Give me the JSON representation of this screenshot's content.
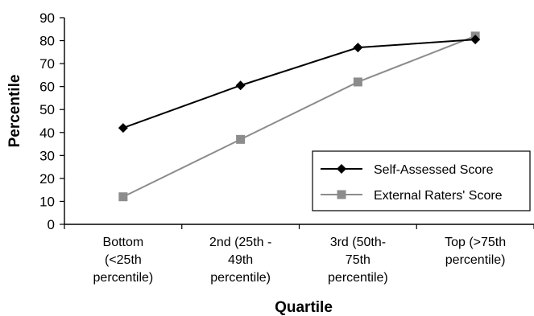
{
  "chart_data": {
    "type": "line",
    "xlabel": "Quartile",
    "ylabel": "Percentile",
    "ylim": [
      0,
      90
    ],
    "yticks": [
      0,
      10,
      20,
      30,
      40,
      50,
      60,
      70,
      80,
      90
    ],
    "grid": false,
    "legend_position": "bottom-right",
    "categories": [
      [
        "Bottom",
        "(<25th",
        "percentile)"
      ],
      [
        "2nd (25th -",
        "49th",
        "percentile)"
      ],
      [
        "3rd (50th-",
        "75th",
        "percentile)"
      ],
      [
        "Top (>75th",
        "percentile)"
      ]
    ],
    "series": [
      {
        "name": "Self-Assessed Score",
        "values": [
          42,
          60.5,
          77,
          80.5
        ],
        "color": "#000000",
        "marker": "diamond"
      },
      {
        "name": "External Raters' Score",
        "values": [
          12,
          37,
          62,
          82
        ],
        "color": "#8c8c8c",
        "marker": "square"
      }
    ]
  }
}
